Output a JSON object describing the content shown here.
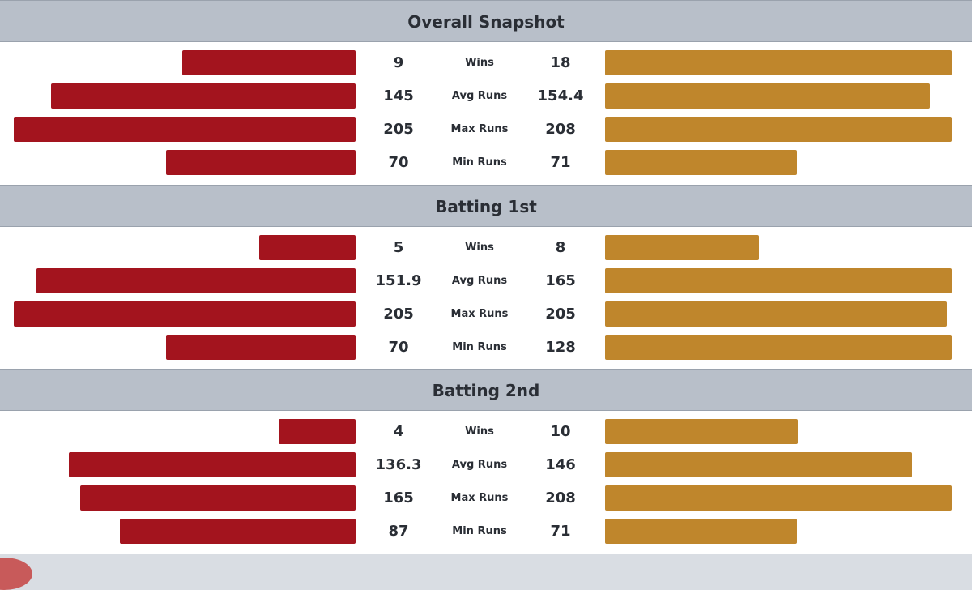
{
  "colors": {
    "left_team": "#a3141e",
    "right_team": "#bf862c",
    "header_bg": "#b8bfc9"
  },
  "chart_data": {
    "type": "bar",
    "orientation": "diverging-horizontal",
    "sections": [
      {
        "title": "Overall Snapshot",
        "rows": [
          {
            "metric": "Wins",
            "left": "9",
            "right": "18",
            "left_value": 9,
            "right_value": 18
          },
          {
            "metric": "Avg Runs",
            "left": "145",
            "right": "154.4",
            "left_value": 145,
            "right_value": 154.4
          },
          {
            "metric": "Max Runs",
            "left": "205",
            "right": "208",
            "left_value": 205,
            "right_value": 208
          },
          {
            "metric": "Min Runs",
            "left": "70",
            "right": "71",
            "left_value": 70,
            "right_value": 71
          }
        ]
      },
      {
        "title": "Batting 1st",
        "rows": [
          {
            "metric": "Wins",
            "left": "5",
            "right": "8",
            "left_value": 5,
            "right_value": 8
          },
          {
            "metric": "Avg Runs",
            "left": "151.9",
            "right": "165",
            "left_value": 151.9,
            "right_value": 165
          },
          {
            "metric": "Max Runs",
            "left": "205",
            "right": "205",
            "left_value": 205,
            "right_value": 205
          },
          {
            "metric": "Min Runs",
            "left": "70",
            "right": "128",
            "left_value": 70,
            "right_value": 128
          }
        ]
      },
      {
        "title": "Batting 2nd",
        "rows": [
          {
            "metric": "Wins",
            "left": "4",
            "right": "10",
            "left_value": 4,
            "right_value": 10
          },
          {
            "metric": "Avg Runs",
            "left": "136.3",
            "right": "146",
            "left_value": 136.3,
            "right_value": 146
          },
          {
            "metric": "Max Runs",
            "left": "165",
            "right": "208",
            "left_value": 165,
            "right_value": 208
          },
          {
            "metric": "Min Runs",
            "left": "87",
            "right": "71",
            "left_value": 87,
            "right_value": 71
          }
        ]
      }
    ]
  }
}
